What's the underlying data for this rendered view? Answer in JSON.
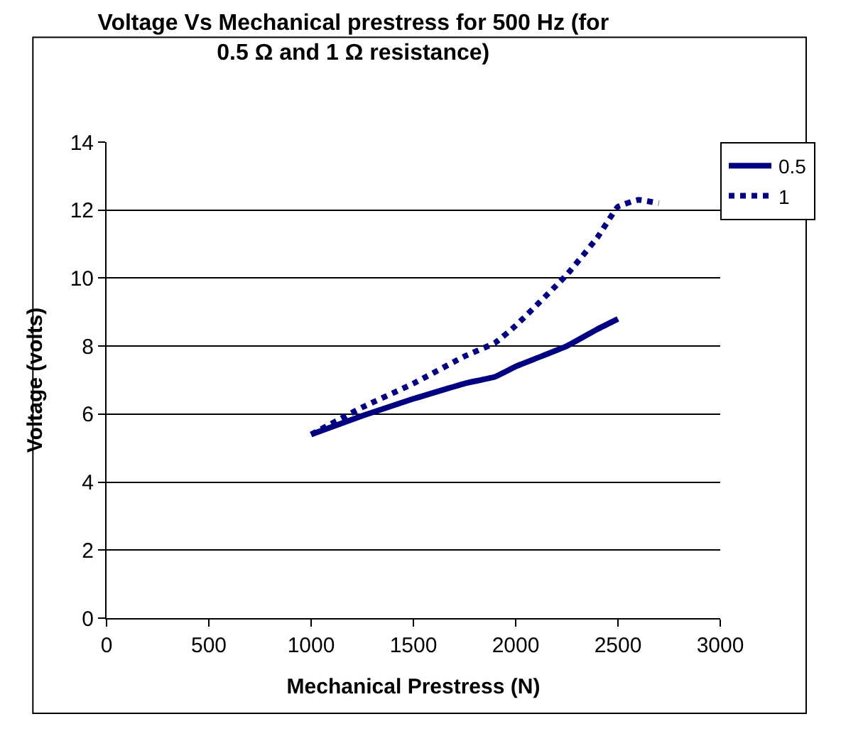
{
  "chart_data": {
    "type": "line",
    "title": "Voltage Vs Mechanical prestress for 500 Hz (for 0.5 Ω and 1 Ω resistance)",
    "xlabel": "Mechanical Prestress (N)",
    "ylabel": "Voltage (volts)",
    "xlim": [
      0,
      3000
    ],
    "xticks": [
      0,
      500,
      1000,
      1500,
      2000,
      2500,
      3000
    ],
    "ylim": [
      0,
      14
    ],
    "yticks": [
      0,
      2,
      4,
      6,
      8,
      10,
      12,
      14
    ],
    "grid": "y",
    "legend": "top right",
    "marker": "none",
    "series": [
      {
        "name": "0.5",
        "color": "#000080",
        "line_style": "solid",
        "x": [
          1000,
          1250,
          1500,
          1750,
          1900,
          2000,
          2250,
          2400,
          2500
        ],
        "values": [
          5.4,
          5.95,
          6.45,
          6.9,
          7.1,
          7.4,
          8.0,
          8.5,
          8.8
        ]
      },
      {
        "name": "1",
        "color": "#000080",
        "line_style": "dotted",
        "x": [
          1000,
          1250,
          1500,
          1750,
          1900,
          2000,
          2250,
          2400,
          2500,
          2600,
          2700
        ],
        "values": [
          5.4,
          6.2,
          6.9,
          7.7,
          8.1,
          8.6,
          10.1,
          11.2,
          12.1,
          12.3,
          12.2
        ]
      }
    ]
  }
}
